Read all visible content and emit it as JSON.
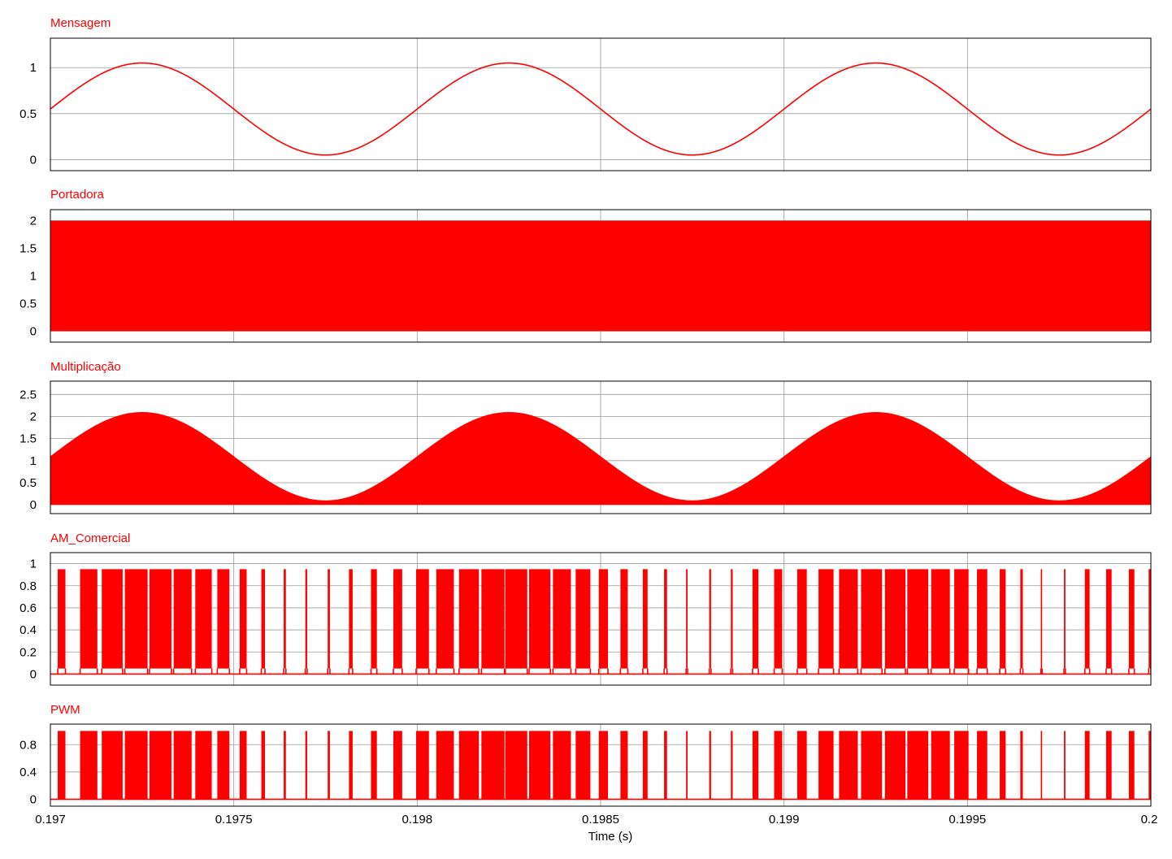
{
  "x_axis": {
    "label": "Time (s)",
    "range": [
      0.197,
      0.2
    ],
    "ticks": [
      0.197,
      0.1975,
      0.198,
      0.1985,
      0.199,
      0.1995,
      0.2
    ],
    "tick_labels": [
      "0.197",
      "0.1975",
      "0.198",
      "0.1985",
      "0.199",
      "0.1995",
      "0.2"
    ]
  },
  "colors": {
    "trace": "#ff0000",
    "grid": "#9a9a9a",
    "frame": "#000000"
  },
  "chart_data": [
    {
      "type": "line",
      "title": "Mensagem",
      "ylim": [
        -0.12,
        1.32
      ],
      "yticks": [
        0,
        0.5,
        1
      ],
      "ytick_labels": [
        "0",
        "0.5",
        "1"
      ],
      "grid": true,
      "series": [
        {
          "model": "sine",
          "offset": 0.55,
          "amplitude": 0.5,
          "frequency_hz": 1000,
          "phase_ref_time": 0.197
        }
      ]
    },
    {
      "type": "area",
      "title": "Portadora",
      "ylim": [
        -0.2,
        2.2
      ],
      "yticks": [
        0,
        0.5,
        1,
        1.5,
        2
      ],
      "ytick_labels": [
        "0",
        "0.5",
        "1",
        "1.5",
        "2"
      ],
      "grid": true,
      "series": [
        {
          "model": "dense-carrier",
          "min": 0,
          "max": 2
        }
      ]
    },
    {
      "type": "area",
      "title": "Multiplicação",
      "ylim": [
        -0.2,
        2.8
      ],
      "yticks": [
        0,
        0.5,
        1,
        1.5,
        2,
        2.5
      ],
      "ytick_labels": [
        "0",
        "0.5",
        "1",
        "1.5",
        "2",
        "2.5"
      ],
      "grid": true,
      "series": [
        {
          "model": "envelope",
          "offset": 1.1,
          "amplitude": 1.0,
          "frequency_hz": 1000,
          "min": 0
        }
      ]
    },
    {
      "type": "line",
      "title": "AM_Comercial",
      "ylim": [
        -0.1,
        1.1
      ],
      "yticks": [
        0,
        0.2,
        0.4,
        0.6,
        0.8,
        1
      ],
      "ytick_labels": [
        "0",
        "0.2",
        "0.4",
        "0.6",
        "0.8",
        "1"
      ],
      "grid": true,
      "series": [
        {
          "model": "pulse-bursts",
          "high": 0.95,
          "low": 0,
          "inner_low": 0.05
        }
      ]
    },
    {
      "type": "line",
      "title": "PWM",
      "ylim": [
        -0.1,
        1.1
      ],
      "yticks": [
        0,
        0.4,
        0.8
      ],
      "ytick_labels": [
        "0",
        "0.4",
        "0.8"
      ],
      "grid": true,
      "series": [
        {
          "model": "pulse-bursts",
          "high": 1.0,
          "low": 0
        }
      ]
    }
  ],
  "pulse_bursts": [
    [
      0.19702,
      0.197041
    ],
    [
      0.197081,
      0.197128
    ],
    [
      0.19714,
      0.197197
    ],
    [
      0.197203,
      0.197265
    ],
    [
      0.19727,
      0.19733
    ],
    [
      0.197336,
      0.197385
    ],
    [
      0.197395,
      0.19744
    ],
    [
      0.197455,
      0.197488
    ],
    [
      0.197516,
      0.197535
    ],
    [
      0.197575,
      0.197585
    ],
    [
      0.197636,
      0.197642
    ],
    [
      0.197695,
      0.1977
    ],
    [
      0.197756,
      0.197762
    ],
    [
      0.197814,
      0.197824
    ],
    [
      0.197874,
      0.19789
    ],
    [
      0.197935,
      0.197959
    ],
    [
      0.197997,
      0.198032
    ],
    [
      0.198052,
      0.1981
    ],
    [
      0.198114,
      0.198168
    ],
    [
      0.198175,
      0.198238
    ],
    [
      0.19824,
      0.1983
    ],
    [
      0.198305,
      0.198363
    ],
    [
      0.19837,
      0.198419
    ],
    [
      0.198432,
      0.198472
    ],
    [
      0.198495,
      0.19852
    ],
    [
      0.198554,
      0.198574
    ],
    [
      0.198615,
      0.198628
    ],
    [
      0.198673,
      0.198681
    ],
    [
      0.198733,
      0.198737
    ],
    [
      0.198796,
      0.198801
    ],
    [
      0.198855,
      0.19886
    ],
    [
      0.198914,
      0.19893
    ],
    [
      0.198973,
      0.198995
    ],
    [
      0.199036,
      0.199062
    ],
    [
      0.199094,
      0.199135
    ],
    [
      0.19915,
      0.199201
    ],
    [
      0.19921,
      0.199267
    ],
    [
      0.199275,
      0.199331
    ],
    [
      0.199336,
      0.199393
    ],
    [
      0.199401,
      0.199452
    ],
    [
      0.199464,
      0.199503
    ],
    [
      0.199526,
      0.199554
    ],
    [
      0.199588,
      0.199604
    ],
    [
      0.199644,
      0.199651
    ],
    [
      0.1997,
      0.199702
    ],
    [
      0.199763,
      0.199767
    ],
    [
      0.19982,
      0.199833
    ],
    [
      0.199878,
      0.199893
    ],
    [
      0.19994,
      0.199955
    ],
    [
      0.199994,
      0.2
    ]
  ]
}
